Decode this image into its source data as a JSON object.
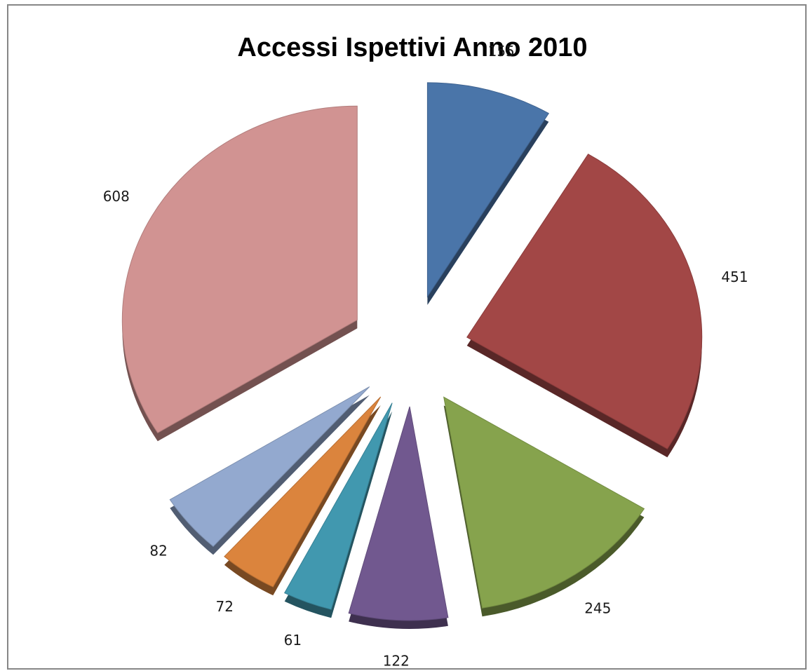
{
  "chart_data": {
    "type": "pie",
    "title": "Accessi Ispettivi Anno 2010",
    "values": [
      155,
      451,
      245,
      122,
      61,
      72,
      82,
      608
    ],
    "colors": [
      "#4A75A9",
      "#A24746",
      "#86A34D",
      "#71588F",
      "#4198AF",
      "#DB843D",
      "#93A9CF",
      "#D19392"
    ],
    "exploded": true,
    "style": "3d",
    "legend": "none"
  }
}
